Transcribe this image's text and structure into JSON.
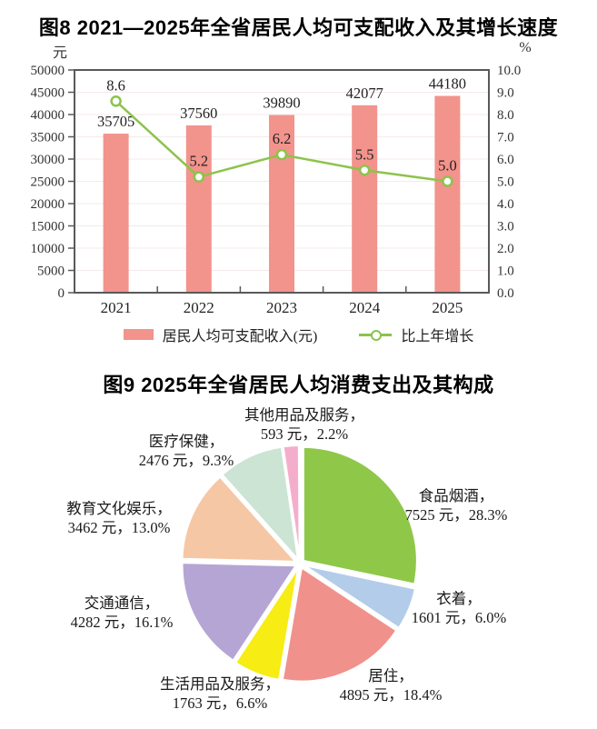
{
  "figure8": {
    "title": "图8 2021—2025年全省居民人均可支配收入及其增长速度",
    "legend": {
      "bar_label": "居民人均可支配收入(元)",
      "line_label": "比上年增长"
    }
  },
  "figure9": {
    "title": "图9 2025年全省居民人均消费支出及其构成"
  },
  "chart_data": [
    {
      "type": "bar",
      "title": "图8 2021—2025年全省居民人均可支配收入及其增长速度",
      "categories": [
        "2021",
        "2022",
        "2023",
        "2024",
        "2025"
      ],
      "series": [
        {
          "name": "居民人均可支配收入(元)",
          "kind": "bar",
          "axis": "left",
          "values": [
            35705,
            37560,
            39890,
            42077,
            44180
          ],
          "color": "#F2938C"
        },
        {
          "name": "比上年增长",
          "kind": "line",
          "axis": "right",
          "values": [
            8.6,
            5.2,
            6.2,
            5.5,
            5.0
          ],
          "color": "#8CC34B"
        }
      ],
      "left_axis": {
        "unit": "元",
        "min": 0,
        "max": 50000,
        "step": 5000
      },
      "right_axis": {
        "unit": "%",
        "min": 0,
        "max": 10,
        "step": 1,
        "decimals": 1
      },
      "grid": true,
      "legend_position": "bottom",
      "colors": {
        "plot_border": "#595959",
        "grid_line": "#F5EAEA",
        "axis_text": "#333333",
        "label_text": "#222222"
      }
    },
    {
      "type": "pie",
      "title": "图9 2025年全省居民人均消费支出及其构成",
      "unit": "元",
      "direction": "clockwise",
      "start_angle_deg": 0,
      "slices": [
        {
          "label": "食品烟酒",
          "value": 7525,
          "percent": "28.3",
          "color": "#8FC849"
        },
        {
          "label": "衣着",
          "value": 1601,
          "percent": "6.0",
          "color": "#B3CCE9"
        },
        {
          "label": "居住",
          "value": 4895,
          "percent": "18.4",
          "color": "#F0918C"
        },
        {
          "label": "生活用品及服务",
          "value": 1763,
          "percent": "6.6",
          "color": "#F7EC13"
        },
        {
          "label": "交通通信",
          "value": 4282,
          "percent": "16.1",
          "color": "#B5A5D5"
        },
        {
          "label": "教育文化娱乐",
          "value": 3462,
          "percent": "13.0",
          "color": "#F6C7A5"
        },
        {
          "label": "医疗保健",
          "value": 2476,
          "percent": "9.3",
          "color": "#CBE4D4"
        },
        {
          "label": "其他用品及服务",
          "value": 593,
          "percent": "2.2",
          "color": "#F4AECB"
        }
      ]
    }
  ]
}
